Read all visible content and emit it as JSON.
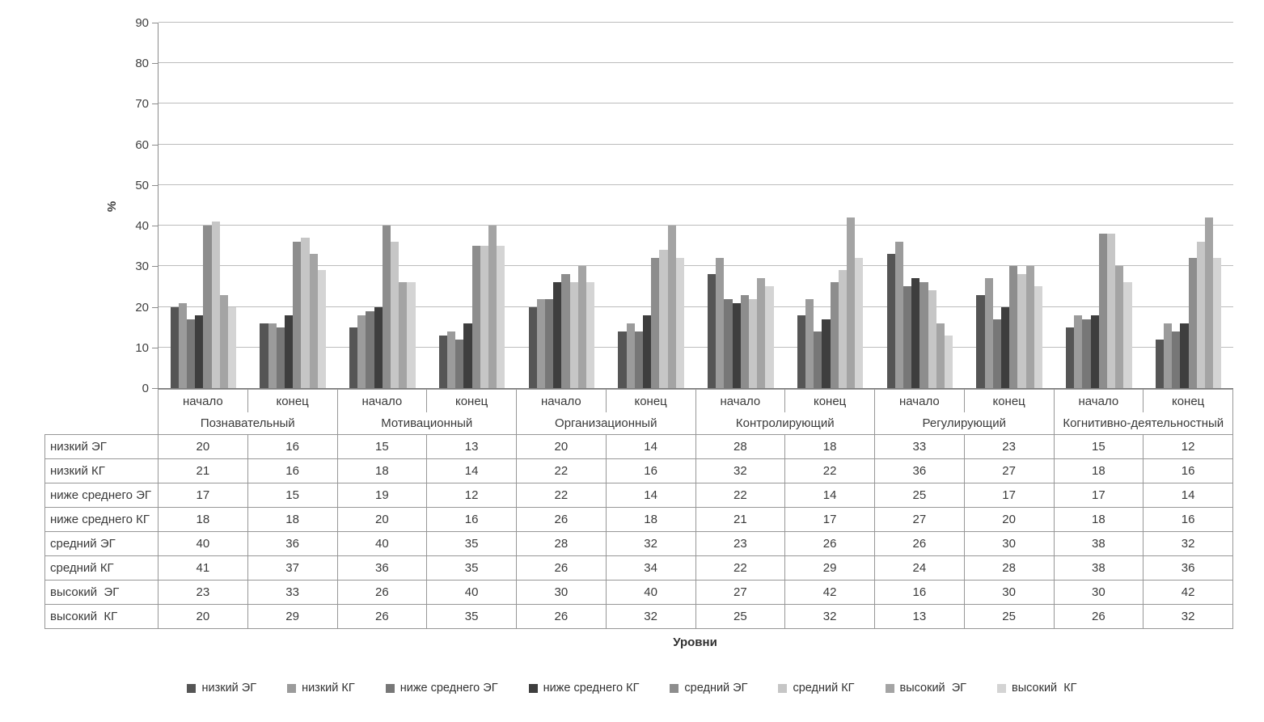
{
  "chart_data": {
    "type": "bar",
    "title": "",
    "ylabel": "%",
    "xlabel": "Уровни",
    "ylim": [
      0,
      90
    ],
    "yticks": [
      0,
      10,
      20,
      30,
      40,
      50,
      60,
      70,
      80,
      90
    ],
    "grid": true,
    "legend_position": "bottom",
    "categories": [
      "Познавательный",
      "Мотивационный",
      "Организационный",
      "Контролирующий",
      "Регулирующий",
      "Когнитивно-деятельностный"
    ],
    "subcategories": [
      "начало",
      "конец"
    ],
    "series": [
      {
        "name": "низкий ЭГ",
        "color": "#555555",
        "values": [
          20,
          16,
          15,
          13,
          20,
          14,
          28,
          18,
          33,
          23,
          15,
          12
        ]
      },
      {
        "name": "низкий КГ",
        "color": "#9b9b9b",
        "values": [
          21,
          16,
          18,
          14,
          22,
          16,
          32,
          22,
          36,
          27,
          18,
          16
        ]
      },
      {
        "name": "ниже среднего ЭГ",
        "color": "#777777",
        "values": [
          17,
          15,
          19,
          12,
          22,
          14,
          22,
          14,
          25,
          17,
          17,
          14
        ]
      },
      {
        "name": "ниже среднего КГ",
        "color": "#3e3e3e",
        "values": [
          18,
          18,
          20,
          16,
          26,
          18,
          21,
          17,
          27,
          20,
          18,
          16
        ]
      },
      {
        "name": "средний ЭГ",
        "color": "#8d8d8d",
        "values": [
          40,
          36,
          40,
          35,
          28,
          32,
          23,
          26,
          26,
          30,
          38,
          32
        ]
      },
      {
        "name": "средний КГ",
        "color": "#c6c6c6",
        "values": [
          41,
          37,
          36,
          35,
          26,
          34,
          22,
          29,
          24,
          28,
          38,
          36
        ]
      },
      {
        "name": "высокий  ЭГ",
        "color": "#a4a4a4",
        "values": [
          23,
          33,
          26,
          40,
          30,
          40,
          27,
          42,
          16,
          30,
          30,
          42
        ]
      },
      {
        "name": "высокий  КГ",
        "color": "#d4d4d4",
        "values": [
          20,
          29,
          26,
          35,
          26,
          32,
          25,
          32,
          13,
          25,
          26,
          32
        ]
      }
    ]
  }
}
